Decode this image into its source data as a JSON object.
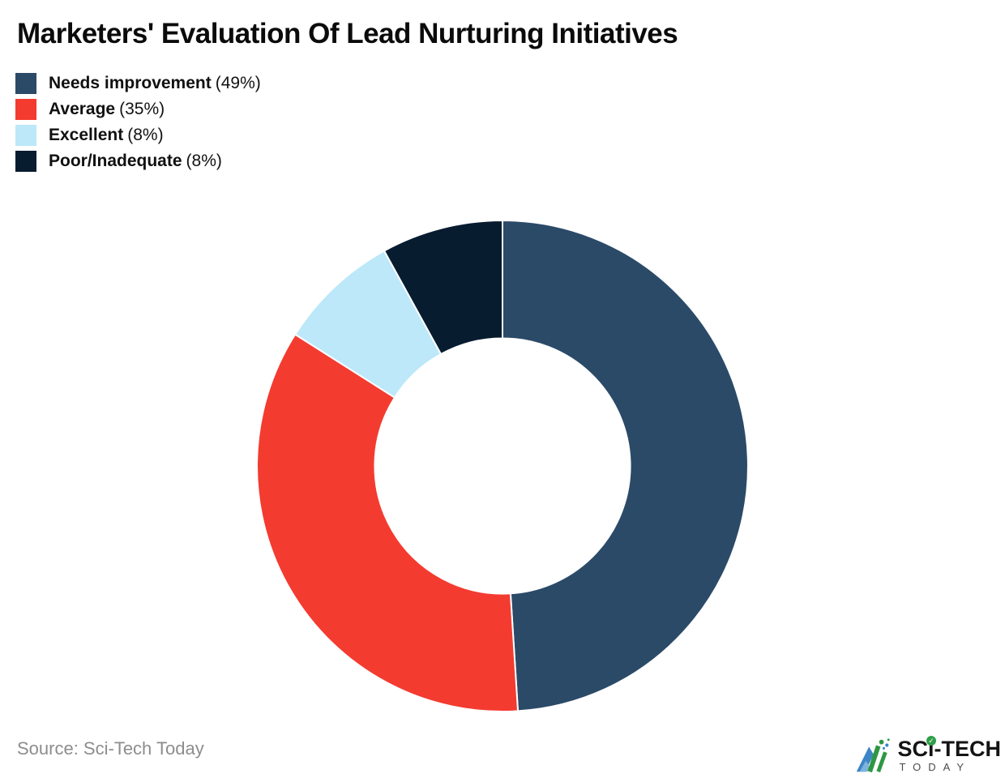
{
  "header": {
    "title": "Marketers' Evaluation Of Lead Nurturing Initiatives"
  },
  "legend": {
    "items": [
      {
        "label": "Needs improvement",
        "value_text": "(49%)"
      },
      {
        "label": "Average",
        "value_text": "(35%)"
      },
      {
        "label": "Excellent",
        "value_text": "(8%)"
      },
      {
        "label": "Poor/Inadequate",
        "value_text": "(8%)"
      }
    ]
  },
  "chart_data": {
    "type": "pie",
    "subtype": "donut",
    "title": "Marketers' Evaluation Of Lead Nurturing Initiatives",
    "categories": [
      "Needs improvement",
      "Average",
      "Excellent",
      "Poor/Inadequate"
    ],
    "values": [
      49,
      35,
      8,
      8
    ],
    "unit": "%",
    "colors": [
      "#2b4a68",
      "#f43b30",
      "#bce8f9",
      "#081c30"
    ],
    "start_angle_deg": 0,
    "direction": "clockwise",
    "inner_radius_ratio": 0.52,
    "slice_border_color": "#ffffff",
    "legend_position": "top-left",
    "background": "#ffffff"
  },
  "footer": {
    "source_text": "Source: Sci-Tech Today",
    "logo": {
      "brand_part1": "SC",
      "brand_part2": "i",
      "brand_part3": "-TECH",
      "brand_subtitle": "TODAY",
      "check_glyph": "✓"
    }
  }
}
